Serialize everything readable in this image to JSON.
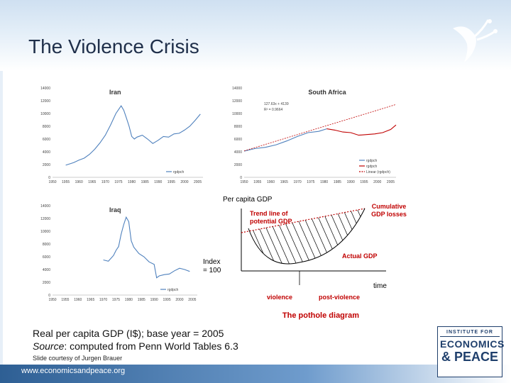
{
  "slide": {
    "title": "The Violence Crisis",
    "caption_line1": "Real per capita GDP (I$); base year = 2005",
    "caption_source_label": "Source",
    "caption_source_text": ": computed from Penn World Tables 6.3",
    "credit": "Slide courtesy of Jurgen Brauer",
    "website": "www.economicsandpeace.org",
    "logo": {
      "line1": "INSTITUTE FOR",
      "line2": "ECONOMICS",
      "line3": "& PEACE"
    },
    "colors": {
      "accent": "#2e5f94",
      "title": "#1f2f4a",
      "red": "#c00000",
      "blue": "#4f81bd"
    }
  },
  "chart_data": [
    {
      "type": "line",
      "title": "Iran",
      "y_ticks": [
        "0",
        "2000",
        "4000",
        "6000",
        "8000",
        "10000",
        "12000",
        "14000"
      ],
      "x_ticks": [
        "1950",
        "1955",
        "1960",
        "1965",
        "1970",
        "1975",
        "1980",
        "1985",
        "1990",
        "1995",
        "2000",
        "2005"
      ],
      "ylim": [
        0,
        14000
      ],
      "xlim": [
        1950,
        2007
      ],
      "legend": [
        "rgdpch"
      ],
      "legend_position": "bottom-right",
      "series": [
        {
          "name": "rgdpch",
          "x": [
            1955,
            1958,
            1960,
            1962,
            1964,
            1966,
            1968,
            1970,
            1972,
            1974,
            1975,
            1976,
            1977,
            1978,
            1979,
            1980,
            1981,
            1982,
            1984,
            1986,
            1988,
            1990,
            1992,
            1994,
            1996,
            1998,
            2000,
            2002,
            2004,
            2006
          ],
          "y": [
            1900,
            2300,
            2700,
            3000,
            3600,
            4400,
            5400,
            6600,
            8200,
            10000,
            10600,
            11200,
            10500,
            9300,
            8000,
            6400,
            6000,
            6300,
            6600,
            6000,
            5300,
            5800,
            6400,
            6300,
            6800,
            6900,
            7400,
            8000,
            8900,
            9900
          ]
        }
      ]
    },
    {
      "type": "line",
      "title": "South Africa",
      "y_ticks": [
        "0",
        "2000",
        "4000",
        "6000",
        "8000",
        "10000",
        "12000",
        "14000"
      ],
      "x_ticks": [
        "1950",
        "1955",
        "1960",
        "1965",
        "1970",
        "1975",
        "1980",
        "1985",
        "1990",
        "1995",
        "2000",
        "2005"
      ],
      "ylim": [
        0,
        14000
      ],
      "xlim": [
        1950,
        2007
      ],
      "annotations": [
        "127.63x + 4139",
        "R² = 0.9664"
      ],
      "legend": [
        "rgdpch",
        "rgdpch",
        "Linear (rgdpch)"
      ],
      "legend_position": "bottom-right",
      "series": [
        {
          "name": "rgdpch",
          "x": [
            1950,
            1954,
            1958,
            1962,
            1966,
            1970,
            1974,
            1978,
            1981
          ],
          "y": [
            4100,
            4500,
            4700,
            5100,
            5700,
            6400,
            7000,
            7200,
            7600
          ]
        },
        {
          "name": "rgdpch",
          "x": [
            1981,
            1984,
            1987,
            1990,
            1993,
            1996,
            1999,
            2002,
            2005,
            2007
          ],
          "y": [
            7600,
            7400,
            7100,
            7000,
            6600,
            6700,
            6800,
            7000,
            7500,
            8200
          ]
        },
        {
          "name": "Linear (rgdpch)",
          "x": [
            1950,
            2007
          ],
          "y": [
            4139,
            11414
          ]
        }
      ]
    },
    {
      "type": "line",
      "title": "Iraq",
      "y_ticks": [
        "0",
        "2000",
        "4000",
        "6000",
        "8000",
        "10000",
        "12000",
        "14000"
      ],
      "x_ticks": [
        "1950",
        "1955",
        "1960",
        "1965",
        "1970",
        "1975",
        "1980",
        "1985",
        "1990",
        "1995",
        "2000",
        "2005"
      ],
      "ylim": [
        0,
        14000
      ],
      "xlim": [
        1950,
        2007
      ],
      "legend": [
        "rgdpch"
      ],
      "legend_position": "bottom-right",
      "series": [
        {
          "name": "rgdpch",
          "x": [
            1970,
            1972,
            1974,
            1975,
            1976,
            1977,
            1978,
            1979,
            1980,
            1981,
            1982,
            1984,
            1986,
            1988,
            1990,
            1991,
            1992,
            1994,
            1996,
            1998,
            2000,
            2002,
            2004
          ],
          "y": [
            5500,
            5300,
            6200,
            7000,
            7600,
            9500,
            11000,
            12200,
            11500,
            8500,
            7500,
            6500,
            6000,
            5200,
            4800,
            2700,
            3000,
            3200,
            3300,
            3800,
            4200,
            4000,
            3700
          ]
        }
      ]
    },
    {
      "type": "line",
      "title": "The pothole diagram",
      "ylabel": "Per capita GDP",
      "xlabel": "time",
      "index_label": "Index\n= 100",
      "labels": {
        "trend": "Trend line of\npotential GDP",
        "cumulative": "Cumulative\nGDP losses",
        "actual": "Actual GDP",
        "violence": "violence",
        "post_violence": "post-violence"
      }
    }
  ]
}
